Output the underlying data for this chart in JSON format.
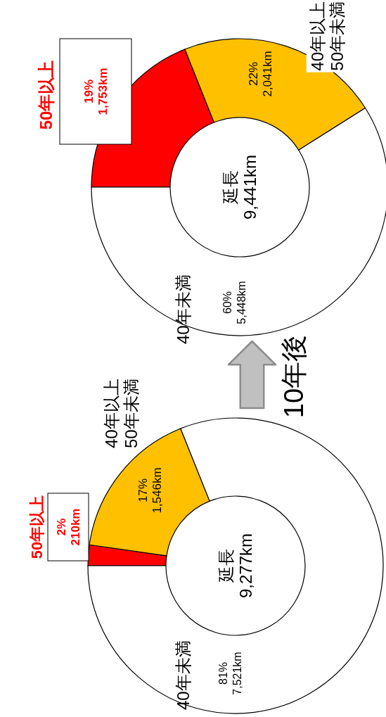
{
  "chart_data": [
    {
      "type": "donut",
      "categories": [
        "50年以上",
        "40年以上\n50年未満",
        "40年未満"
      ],
      "values": [
        210,
        1546,
        7521
      ],
      "colors": [
        "#ff0000",
        "#ffc000",
        "#ffffff"
      ],
      "value_labels": [
        "2%\n210km",
        "17%\n1,546km",
        "81%\n7,521km"
      ],
      "annotations": [
        "延長\n9,277km"
      ]
    },
    {
      "type": "donut",
      "categories": [
        "50年以上",
        "40年以上\n50年未満",
        "40年未満"
      ],
      "values": [
        1753,
        2041,
        5448
      ],
      "colors": [
        "#ff0000",
        "#ffc000",
        "#ffffff"
      ],
      "value_labels": [
        "19%\n1,753km",
        "22%\n2,041km",
        "60%\n5,448km"
      ],
      "annotations": [
        "延長\n9,441km",
        "10年後"
      ]
    }
  ]
}
